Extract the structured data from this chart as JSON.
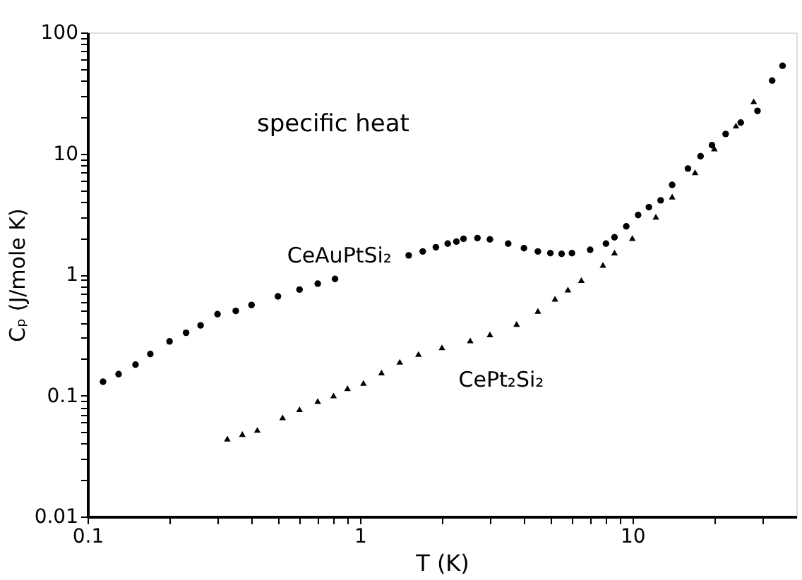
{
  "chart_data": {
    "type": "scatter",
    "xlabel": "T (K)",
    "ylabel": "Cₚ (J/mole K)",
    "annotations": [
      "specific heat"
    ],
    "log": "xy",
    "grid": false,
    "xlim": [
      0.1,
      40
    ],
    "ylim": [
      0.01,
      100
    ],
    "xticks": [
      0.1,
      {
        "value": 0.2,
        "label": null
      },
      {
        "value": 0.3,
        "label": null
      },
      {
        "value": 0.4,
        "label": null
      },
      {
        "value": 0.5,
        "label": null
      },
      {
        "value": 0.6,
        "label": null
      },
      {
        "value": 0.7,
        "label": null
      },
      {
        "value": 0.8,
        "label": null
      },
      {
        "value": 0.9,
        "label": null
      },
      1,
      {
        "value": 2,
        "label": null
      },
      {
        "value": 3,
        "label": null
      },
      {
        "value": 4,
        "label": null
      },
      {
        "value": 5,
        "label": null
      },
      {
        "value": 6,
        "label": null
      },
      {
        "value": 7,
        "label": null
      },
      {
        "value": 8,
        "label": null
      },
      {
        "value": 9,
        "label": null
      },
      10,
      {
        "value": 20,
        "label": null
      },
      {
        "value": 30,
        "label": null
      }
    ],
    "yticks": [
      0.01,
      {
        "value": 0.02,
        "label": null
      },
      {
        "value": 0.03,
        "label": null
      },
      {
        "value": 0.04,
        "label": null
      },
      {
        "value": 0.05,
        "label": null
      },
      {
        "value": 0.06,
        "label": null
      },
      {
        "value": 0.07,
        "label": null
      },
      {
        "value": 0.08,
        "label": null
      },
      {
        "value": 0.09,
        "label": null
      },
      0.1,
      {
        "value": 0.2,
        "label": null
      },
      {
        "value": 0.3,
        "label": null
      },
      {
        "value": 0.4,
        "label": null
      },
      {
        "value": 0.5,
        "label": null
      },
      {
        "value": 0.6,
        "label": null
      },
      {
        "value": 0.7,
        "label": null
      },
      {
        "value": 0.8,
        "label": null
      },
      {
        "value": 0.9,
        "label": null
      },
      1,
      {
        "value": 2,
        "label": null
      },
      {
        "value": 3,
        "label": null
      },
      {
        "value": 4,
        "label": null
      },
      {
        "value": 5,
        "label": null
      },
      {
        "value": 6,
        "label": null
      },
      {
        "value": 7,
        "label": null
      },
      {
        "value": 8,
        "label": null
      },
      {
        "value": 9,
        "label": null
      },
      10,
      {
        "value": 20,
        "label": null
      },
      {
        "value": 30,
        "label": null
      },
      {
        "value": 40,
        "label": null
      },
      {
        "value": 50,
        "label": null
      },
      {
        "value": 60,
        "label": null
      },
      {
        "value": 70,
        "label": null
      },
      {
        "value": 80,
        "label": null
      },
      {
        "value": 90,
        "label": null
      },
      100
    ],
    "series": [
      {
        "name": "CeAuPtSi₂",
        "color": "#000000",
        "marker": "circle",
        "x": [
          0.114,
          0.13,
          0.15,
          0.17,
          0.2,
          0.23,
          0.26,
          0.3,
          0.35,
          0.4,
          0.5,
          0.6,
          0.7,
          0.81,
          1.1,
          1.51,
          1.7,
          1.9,
          2.1,
          2.26,
          2.4,
          2.7,
          3.0,
          3.5,
          4.0,
          4.5,
          5.0,
          5.5,
          6.0,
          7.0,
          8.0,
          8.6,
          9.5,
          10.5,
          11.5,
          12.7,
          14,
          16,
          17.8,
          19.6,
          22,
          25,
          28.8,
          32.6,
          35.6
        ],
        "values": [
          0.13,
          0.15,
          0.18,
          0.22,
          0.28,
          0.33,
          0.38,
          0.47,
          0.5,
          0.56,
          0.66,
          0.75,
          0.84,
          0.92,
          null,
          1.44,
          1.55,
          1.68,
          1.8,
          1.87,
          1.97,
          2.0,
          1.95,
          1.8,
          1.65,
          1.55,
          1.5,
          1.48,
          1.5,
          1.6,
          1.8,
          2.03,
          2.5,
          3.1,
          3.6,
          4.1,
          5.5,
          7.5,
          9.5,
          11.7,
          14.5,
          18,
          22.5,
          40,
          53
        ]
      },
      {
        "name": "CePt₂Si₂",
        "color": "#000000",
        "marker": "triangle",
        "x": [
          0.326,
          0.37,
          0.42,
          0.52,
          0.6,
          0.7,
          0.8,
          0.9,
          1.03,
          1.2,
          1.4,
          1.64,
          2.0,
          2.54,
          3.0,
          3.76,
          4.5,
          5.2,
          5.8,
          6.5,
          7.8,
          8.6,
          10,
          12.2,
          14,
          17,
          20,
          24,
          27.9
        ],
        "values": [
          0.044,
          0.048,
          0.052,
          0.066,
          0.077,
          0.09,
          0.1,
          0.115,
          0.127,
          0.155,
          0.19,
          0.22,
          0.25,
          0.285,
          0.32,
          0.39,
          0.5,
          0.63,
          0.75,
          0.9,
          1.2,
          1.52,
          2.0,
          3.0,
          4.4,
          7,
          11,
          17,
          27
        ]
      }
    ]
  }
}
